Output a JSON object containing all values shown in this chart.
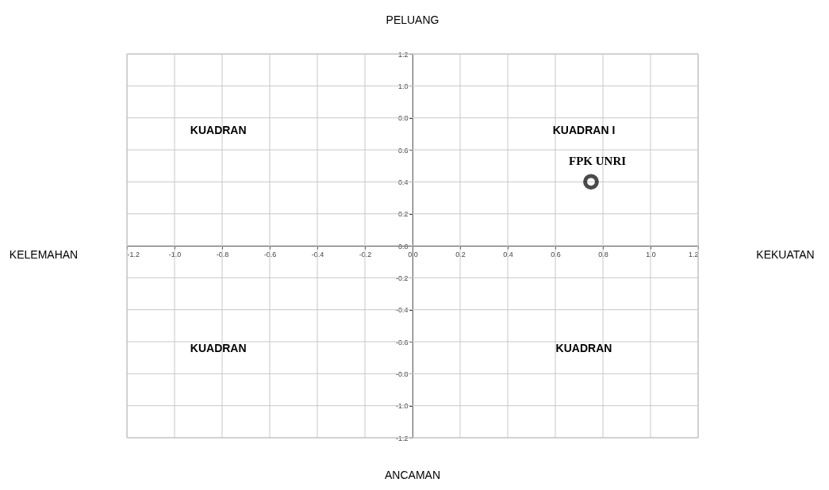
{
  "chart_data": {
    "type": "scatter",
    "series": [
      {
        "name": "FPK UNRI",
        "color": "#000000",
        "x": [
          0.75
        ],
        "values": [
          0.4
        ]
      }
    ],
    "xlim": [
      -1.2,
      1.2
    ],
    "ylim": [
      -1.2,
      1.2
    ],
    "xticks": [
      {
        "value": -1.2,
        "label": "-1.2"
      },
      {
        "value": -1.0,
        "label": "-1.0"
      },
      {
        "value": -0.8,
        "label": "-0.8"
      },
      {
        "value": -0.6,
        "label": "-0.6"
      },
      {
        "value": -0.4,
        "label": "-0.4"
      },
      {
        "value": -0.2,
        "label": "-0.2"
      },
      {
        "value": 0,
        "label": "0.0"
      },
      {
        "value": 0.2,
        "label": "0.2"
      },
      {
        "value": 0.4,
        "label": "0.4"
      },
      {
        "value": 0.6,
        "label": "0.6"
      },
      {
        "value": 0.8,
        "label": "0.8"
      },
      {
        "value": 1.0,
        "label": "1.0"
      },
      {
        "value": 1.2,
        "label": "1.2"
      }
    ],
    "yticks": [
      {
        "value": -1.2,
        "label": "-1.2"
      },
      {
        "value": -1.0,
        "label": "-1.0"
      },
      {
        "value": -0.8,
        "label": "-0.8"
      },
      {
        "value": -0.6,
        "label": "-0.6"
      },
      {
        "value": -0.4,
        "label": "-0.4"
      },
      {
        "value": -0.2,
        "label": "-0.2"
      },
      {
        "value": 0,
        "label": "0.0"
      },
      {
        "value": 0.2,
        "label": "0.2"
      },
      {
        "value": 0.4,
        "label": "0.4"
      },
      {
        "value": 0.6,
        "label": "0.6"
      },
      {
        "value": 0.8,
        "label": "0.8"
      },
      {
        "value": 1.0,
        "label": "1.0"
      },
      {
        "value": 1.2,
        "label": "1.2"
      }
    ],
    "annotations": [
      "PELUANG",
      "KELEMAHAN",
      "KEKUATAN",
      "ANCAMAN",
      "KUADRAN",
      "KUADRAN I",
      "KUADRAN",
      "KUADRAN"
    ],
    "grid": true,
    "marker": "circle"
  }
}
